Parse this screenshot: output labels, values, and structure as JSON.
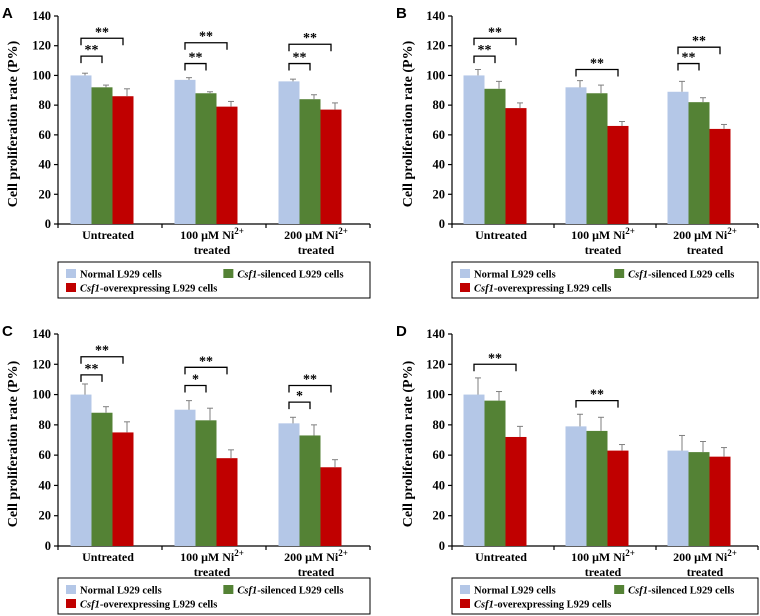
{
  "chart_data": [
    {
      "panel": "A",
      "type": "bar",
      "ylabel": "Cell proliferation rate (P%)",
      "ylim": [
        0,
        140
      ],
      "yticks": [
        0,
        20,
        40,
        60,
        80,
        100,
        120,
        140
      ],
      "categories": [
        {
          "line1": "Untreated",
          "line1_sup": "",
          "line2": ""
        },
        {
          "line1": "100 μM Ni",
          "line1_sup": "2+",
          "line2": "treated"
        },
        {
          "line1": "200 μM Ni",
          "line1_sup": "2+",
          "line2": "treated"
        }
      ],
      "series": [
        {
          "name": "Normal L929 cells",
          "values": [
            100,
            97,
            96
          ],
          "errors": [
            1.5,
            1.5,
            1.5
          ]
        },
        {
          "name": "Csf1-silenced L929 cells",
          "values": [
            92,
            88,
            84
          ],
          "errors": [
            1.5,
            1,
            3
          ]
        },
        {
          "name": "Csf1-overexpressing L929 cells",
          "values": [
            86,
            79,
            77
          ],
          "errors": [
            5,
            3.5,
            4.5
          ]
        }
      ],
      "significance": [
        {
          "group": 0,
          "from": 0,
          "to": 1,
          "y": 113,
          "label": "**"
        },
        {
          "group": 0,
          "from": 0,
          "to": 2,
          "y": 125,
          "label": "**"
        },
        {
          "group": 1,
          "from": 0,
          "to": 1,
          "y": 108,
          "label": "**"
        },
        {
          "group": 1,
          "from": 0,
          "to": 2,
          "y": 122,
          "label": "**"
        },
        {
          "group": 2,
          "from": 0,
          "to": 1,
          "y": 108,
          "label": "**"
        },
        {
          "group": 2,
          "from": 0,
          "to": 2,
          "y": 121,
          "label": "**"
        }
      ]
    },
    {
      "panel": "B",
      "type": "bar",
      "ylabel": "Cell proliferation rate (P%)",
      "ylim": [
        0,
        140
      ],
      "yticks": [
        0,
        20,
        40,
        60,
        80,
        100,
        120,
        140
      ],
      "categories": [
        {
          "line1": "Untreated",
          "line1_sup": "",
          "line2": ""
        },
        {
          "line1": "100 μM Ni",
          "line1_sup": "2+",
          "line2": "treated"
        },
        {
          "line1": "200 μM Ni",
          "line1_sup": "2+",
          "line2": "treated"
        }
      ],
      "series": [
        {
          "name": "Normal L929 cells",
          "values": [
            100,
            92,
            89
          ],
          "errors": [
            4,
            4.5,
            7
          ]
        },
        {
          "name": "Csf1-silenced L929 cells",
          "values": [
            91,
            88,
            82
          ],
          "errors": [
            5,
            5.5,
            3
          ]
        },
        {
          "name": "Csf1-overexpressing L929 cells",
          "values": [
            78,
            66,
            64
          ],
          "errors": [
            3.5,
            3,
            3
          ]
        }
      ],
      "significance": [
        {
          "group": 0,
          "from": 0,
          "to": 1,
          "y": 113,
          "label": "**"
        },
        {
          "group": 0,
          "from": 0,
          "to": 2,
          "y": 125,
          "label": "**"
        },
        {
          "group": 1,
          "from": 0,
          "to": 2,
          "y": 104,
          "label": "**"
        },
        {
          "group": 2,
          "from": 0,
          "to": 1,
          "y": 108,
          "label": "**"
        },
        {
          "group": 2,
          "from": 0,
          "to": 2,
          "y": 119,
          "label": "**"
        }
      ]
    },
    {
      "panel": "C",
      "type": "bar",
      "ylabel": "Cell proliferation rate (P%)",
      "ylim": [
        0,
        140
      ],
      "yticks": [
        0,
        20,
        40,
        60,
        80,
        100,
        120,
        140
      ],
      "categories": [
        {
          "line1": "Untreated",
          "line1_sup": "",
          "line2": ""
        },
        {
          "line1": "100 μM Ni",
          "line1_sup": "2+",
          "line2": "treated"
        },
        {
          "line1": "200 μM Ni",
          "line1_sup": "2+",
          "line2": "treated"
        }
      ],
      "series": [
        {
          "name": "Normal L929 cells",
          "values": [
            100,
            90,
            81
          ],
          "errors": [
            7,
            6,
            4
          ]
        },
        {
          "name": "Csf1-silenced L929 cells",
          "values": [
            88,
            83,
            73
          ],
          "errors": [
            4,
            8,
            7
          ]
        },
        {
          "name": "Csf1-overexpressing L929 cells",
          "values": [
            75,
            58,
            52
          ],
          "errors": [
            7,
            5.5,
            5
          ]
        }
      ],
      "significance": [
        {
          "group": 0,
          "from": 0,
          "to": 1,
          "y": 113,
          "label": "**"
        },
        {
          "group": 0,
          "from": 0,
          "to": 2,
          "y": 125,
          "label": "**"
        },
        {
          "group": 1,
          "from": 0,
          "to": 1,
          "y": 106,
          "label": "*"
        },
        {
          "group": 1,
          "from": 0,
          "to": 2,
          "y": 118,
          "label": "**"
        },
        {
          "group": 2,
          "from": 0,
          "to": 1,
          "y": 95,
          "label": "*"
        },
        {
          "group": 2,
          "from": 0,
          "to": 2,
          "y": 106,
          "label": "**"
        }
      ]
    },
    {
      "panel": "D",
      "type": "bar",
      "ylabel": "Cell proliferation rate (P%)",
      "ylim": [
        0,
        140
      ],
      "yticks": [
        0,
        20,
        40,
        60,
        80,
        100,
        120,
        140
      ],
      "categories": [
        {
          "line1": "Untreated",
          "line1_sup": "",
          "line2": ""
        },
        {
          "line1": "100 μM Ni",
          "line1_sup": "2+",
          "line2": "treated"
        },
        {
          "line1": "200 μM Ni",
          "line1_sup": "2+",
          "line2": "treated"
        }
      ],
      "series": [
        {
          "name": "Normal L929 cells",
          "values": [
            100,
            79,
            63
          ],
          "errors": [
            11,
            8,
            10
          ]
        },
        {
          "name": "Csf1-silenced L929 cells",
          "values": [
            96,
            76,
            62
          ],
          "errors": [
            6,
            9,
            7
          ]
        },
        {
          "name": "Csf1-overexpressing L929 cells",
          "values": [
            72,
            63,
            59
          ],
          "errors": [
            7,
            4,
            6
          ]
        }
      ],
      "significance": [
        {
          "group": 0,
          "from": 0,
          "to": 2,
          "y": 120,
          "label": "**"
        },
        {
          "group": 1,
          "from": 0,
          "to": 2,
          "y": 96,
          "label": "**"
        }
      ]
    }
  ],
  "legend": [
    {
      "italic": "",
      "text": "Normal L929 cells",
      "color": "#b4c7e7"
    },
    {
      "italic": "Csf1",
      "text": "-silenced L929 cells",
      "color": "#548235"
    },
    {
      "italic": "Csf1",
      "text": "-overexpressing L929 cells",
      "color": "#c00000"
    }
  ],
  "colors": {
    "normal": "#b4c7e7",
    "silenced": "#548235",
    "overexpressing": "#c00000"
  }
}
